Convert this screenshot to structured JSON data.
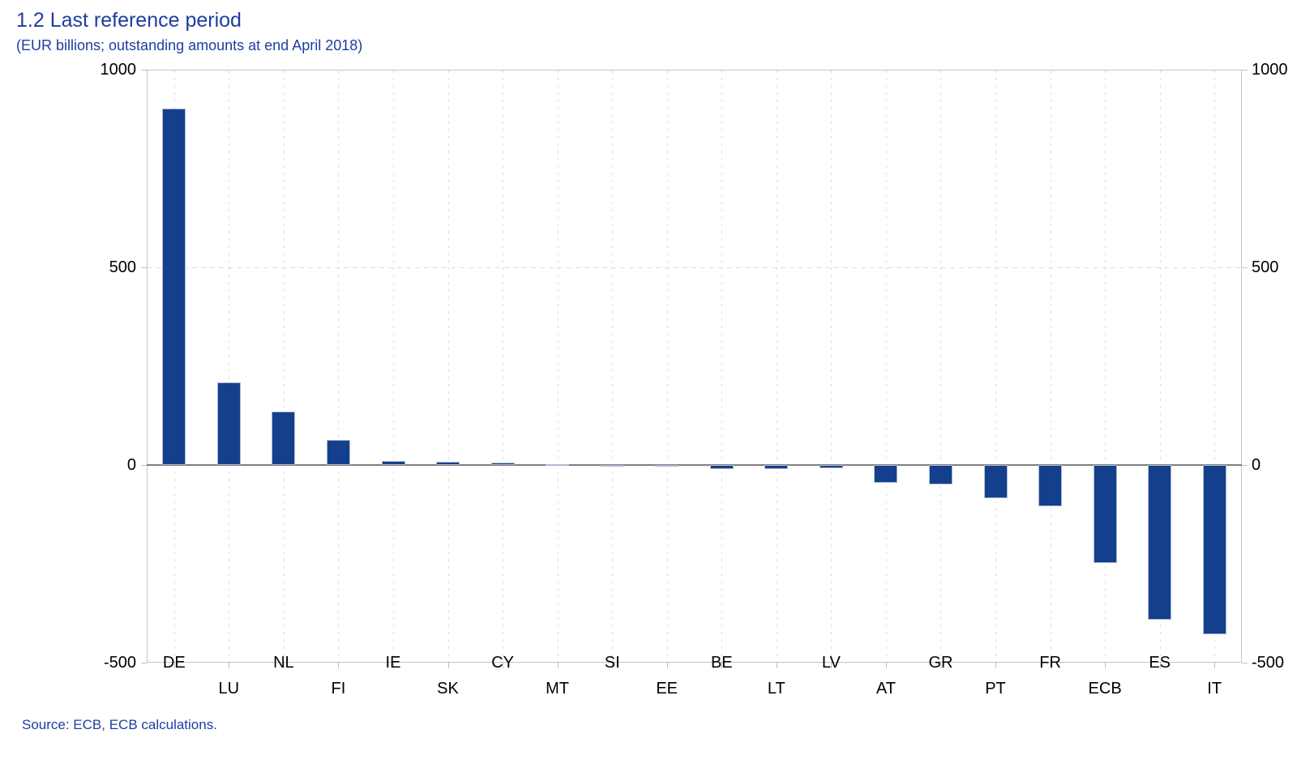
{
  "page": {
    "title": "1.2 Last reference period",
    "subtitle": "(EUR billions; outstanding amounts at end April 2018)",
    "source": "Source: ECB, ECB calculations."
  },
  "chart_data": {
    "type": "bar",
    "title": "1.2 Last reference period",
    "subtitle": "(EUR billions; outstanding amounts at end April 2018)",
    "source": "Source: ECB, ECB calculations.",
    "unit": "EUR billions",
    "categories": [
      "DE",
      "LU",
      "NL",
      "FI",
      "IE",
      "SK",
      "CY",
      "MT",
      "SI",
      "EE",
      "BE",
      "LT",
      "LV",
      "AT",
      "GR",
      "PT",
      "FR",
      "ECB",
      "ES",
      "IT"
    ],
    "values": [
      902,
      210,
      135,
      64,
      10,
      9,
      6,
      3,
      -0.5,
      -2,
      -10,
      -10,
      -9,
      -44,
      -49,
      -83,
      -105,
      -248,
      -392,
      -429
    ],
    "ylim": [
      -500,
      1000
    ],
    "yticks": [
      1000,
      500,
      0,
      -500
    ],
    "ytick_labels": [
      "1000",
      "500",
      "0",
      "-500"
    ],
    "value_axis_sides": [
      "left",
      "right"
    ],
    "legend": "none",
    "grid": {
      "horizontal_dashed_at": [
        500
      ],
      "vertical_dashed": "one per category",
      "zero_line": "solid gray"
    },
    "xlabel_rows": "alternating two rows"
  },
  "colors": {
    "title_text": "#1f3da1",
    "bar_fill": "#143f8c",
    "bar_outline": "#b0bad4",
    "grid_line": "#dcdcdc",
    "frame": "#c5c5c5",
    "zero_line": "#7f7f7f",
    "axis_text": "#000000",
    "background": "#ffffff"
  }
}
